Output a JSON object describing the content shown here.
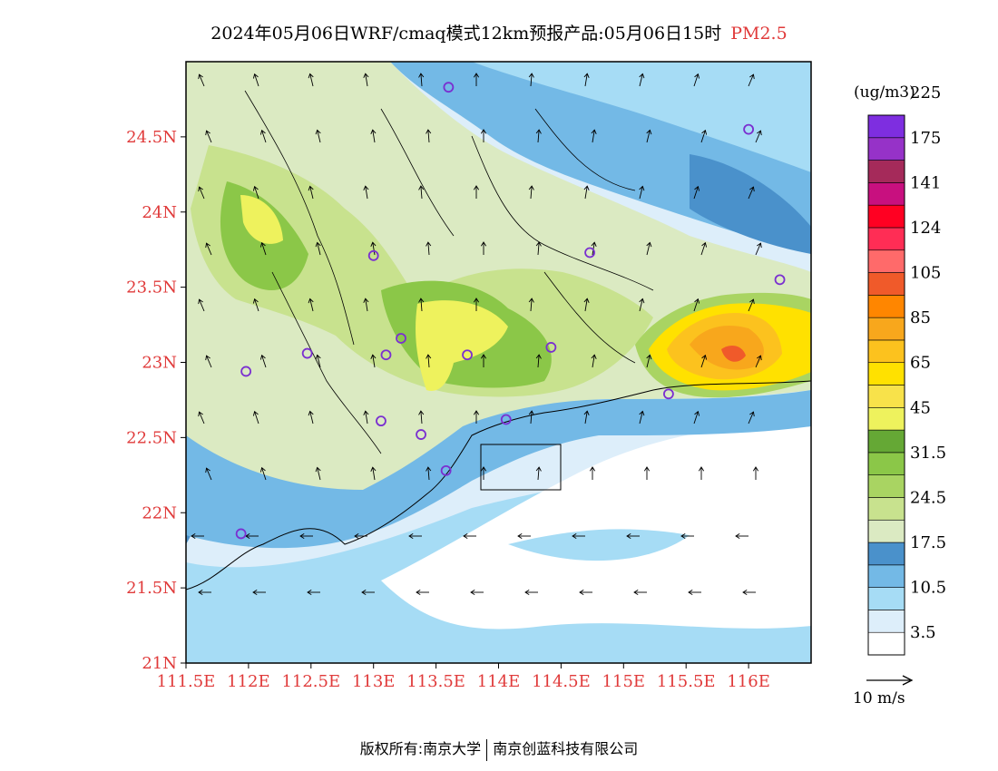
{
  "title": {
    "main": "2024年05月06日WRF/cmaq模式12km预报产品:05月06日15时",
    "species": "PM2.5"
  },
  "map": {
    "lon_range": [
      111.5,
      116.5
    ],
    "lat_range": [
      21,
      25
    ],
    "x_ticks": [
      {
        "value": 111.5,
        "label": "111.5E"
      },
      {
        "value": 112,
        "label": "112E"
      },
      {
        "value": 112.5,
        "label": "112.5E"
      },
      {
        "value": 113,
        "label": "113E"
      },
      {
        "value": 113.5,
        "label": "113.5E"
      },
      {
        "value": 114,
        "label": "114E"
      },
      {
        "value": 114.5,
        "label": "114.5E"
      },
      {
        "value": 115,
        "label": "115E"
      },
      {
        "value": 115.5,
        "label": "115.5E"
      },
      {
        "value": 116,
        "label": "116E"
      }
    ],
    "y_ticks": [
      {
        "value": 21,
        "label": "21N"
      },
      {
        "value": 21.5,
        "label": "21.5N"
      },
      {
        "value": 22,
        "label": "22N"
      },
      {
        "value": 22.5,
        "label": "22.5N"
      },
      {
        "value": 23,
        "label": "23N"
      },
      {
        "value": 23.5,
        "label": "23.5N"
      },
      {
        "value": 24,
        "label": "24N"
      },
      {
        "value": 24.5,
        "label": "24.5N"
      }
    ],
    "stations": [
      {
        "lon": 113.6,
        "lat": 24.83
      },
      {
        "lon": 116.0,
        "lat": 24.55
      },
      {
        "lon": 113.0,
        "lat": 23.71
      },
      {
        "lon": 114.73,
        "lat": 23.73
      },
      {
        "lon": 116.25,
        "lat": 23.55
      },
      {
        "lon": 113.22,
        "lat": 23.16
      },
      {
        "lon": 113.1,
        "lat": 23.05
      },
      {
        "lon": 112.47,
        "lat": 23.06
      },
      {
        "lon": 113.75,
        "lat": 23.05
      },
      {
        "lon": 114.42,
        "lat": 23.1
      },
      {
        "lon": 111.98,
        "lat": 22.94
      },
      {
        "lon": 115.36,
        "lat": 22.79
      },
      {
        "lon": 113.06,
        "lat": 22.61
      },
      {
        "lon": 114.06,
        "lat": 22.62
      },
      {
        "lon": 113.38,
        "lat": 22.52
      },
      {
        "lon": 113.58,
        "lat": 22.28
      },
      {
        "lon": 111.94,
        "lat": 21.86
      }
    ],
    "hotspot": {
      "label": "PM2.5 hotspot",
      "value_range_ugm3": [
        85,
        105
      ],
      "lon": 115.75,
      "lat": 23.15
    }
  },
  "colorbar": {
    "unit": "(ug/m3)",
    "colors": [
      "#ffffff",
      "#ddeefa",
      "#a6dcf5",
      "#73b9e6",
      "#4a91cb",
      "#dbeac2",
      "#c8e28e",
      "#a9d462",
      "#8bc748",
      "#65a835",
      "#eef25d",
      "#f8e24a",
      "#ffe100",
      "#fcc21e",
      "#f8a71c",
      "#ff8600",
      "#f05a2a",
      "#ff6a6a",
      "#ff2d55",
      "#ff0022",
      "#c8107f",
      "#a52a5a",
      "#9632c8",
      "#7e2ee0"
    ],
    "labels": [
      "3.5",
      "10.5",
      "17.5",
      "24.5",
      "31.5",
      "45",
      "65",
      "85",
      "105",
      "124",
      "141",
      "175",
      "225"
    ]
  },
  "wind_reference": {
    "label": "10 m/s"
  },
  "footer": {
    "copyright": "版权所有:南京大学",
    "company": "南京创蓝科技有限公司"
  }
}
